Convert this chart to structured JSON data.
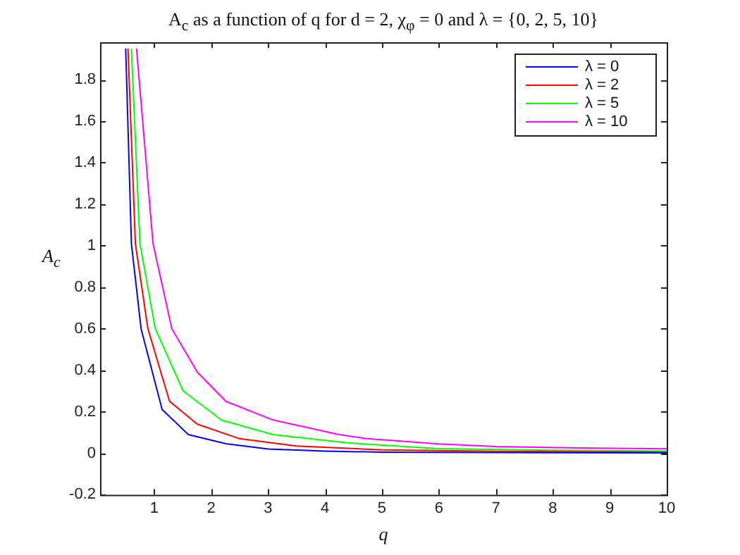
{
  "chart_data": {
    "type": "line",
    "title": "A$_{c}$ as a function of q for d = 2, χ$_{φ}$ = 0 and λ = {0, 2, 5, 10}",
    "xlabel": "q",
    "ylabel": "A$_{c}$",
    "xlim": [
      0.05,
      10
    ],
    "xticks": [
      1,
      2,
      3,
      4,
      5,
      6,
      7,
      8,
      9,
      10
    ],
    "ylim": [
      -0.2,
      1.98
    ],
    "yticks": [
      -0.2,
      0,
      0.2,
      0.4,
      0.6,
      0.8,
      1,
      1.2,
      1.4,
      1.6,
      1.8
    ],
    "grid": false,
    "legend": "top right",
    "marker": "none",
    "line_style": "solid",
    "series": [
      {
        "name": "λ = 0",
        "color": "#0000ff",
        "x": [
          0.5,
          0.6,
          0.77,
          1.14,
          1.6,
          2.26,
          3,
          4,
          5,
          7,
          10
        ],
        "values": [
          1.95,
          1.01,
          0.6,
          0.21,
          0.09,
          0.046,
          0.02,
          0.01,
          0.005,
          0.003,
          0.002
        ]
      },
      {
        "name": "λ = 2",
        "color": "#ff0000",
        "x": [
          0.54,
          0.67,
          0.89,
          1.27,
          1.76,
          2.5,
          3.5,
          5,
          7,
          10
        ],
        "values": [
          1.95,
          1.01,
          0.6,
          0.25,
          0.14,
          0.07,
          0.035,
          0.016,
          0.009,
          0.005
        ]
      },
      {
        "name": "λ = 5",
        "color": "#00ff00",
        "x": [
          0.6,
          0.75,
          1.02,
          1.51,
          2.18,
          3.09,
          4.4,
          6,
          8,
          10
        ],
        "values": [
          1.95,
          1.01,
          0.6,
          0.3,
          0.16,
          0.09,
          0.05,
          0.022,
          0.014,
          0.01
        ]
      },
      {
        "name": "λ = 10",
        "color": "#ff00ff",
        "x": [
          0.69,
          0.98,
          1.31,
          1.76,
          2.26,
          3.09,
          4.25,
          4.74,
          6,
          7,
          8.5,
          10
        ],
        "values": [
          1.95,
          1.01,
          0.6,
          0.39,
          0.25,
          0.16,
          0.09,
          0.07,
          0.045,
          0.032,
          0.025,
          0.021
        ]
      }
    ]
  }
}
